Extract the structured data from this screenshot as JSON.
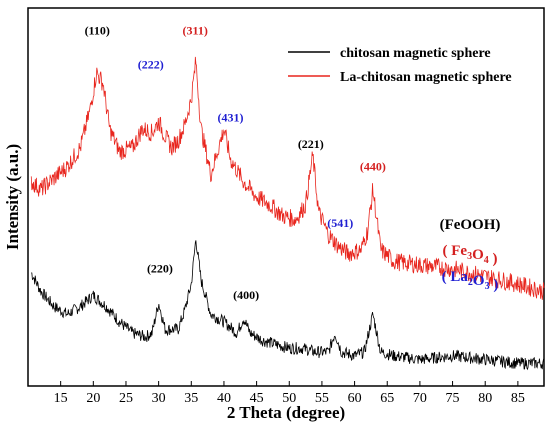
{
  "chart_data": {
    "type": "line",
    "xlabel": "2 Theta (degree)",
    "ylabel": "Intensity (a.u.)",
    "xlim": [
      10,
      89
    ],
    "xticks": [
      15,
      20,
      25,
      30,
      35,
      40,
      45,
      50,
      55,
      60,
      65,
      70,
      75,
      80,
      85
    ],
    "ylim": [
      0,
      100
    ],
    "grid": false,
    "legend_position": "top-right",
    "series": [
      {
        "name": "chitosan magnetic sphere",
        "color": "#000000",
        "points": [
          [
            10.5,
            30
          ],
          [
            12,
            25
          ],
          [
            14,
            21
          ],
          [
            16,
            19
          ],
          [
            18,
            21
          ],
          [
            20,
            24
          ],
          [
            22,
            21
          ],
          [
            24,
            17
          ],
          [
            26,
            14
          ],
          [
            28,
            13
          ],
          [
            29,
            14
          ],
          [
            30,
            22
          ],
          [
            31,
            15
          ],
          [
            33,
            15
          ],
          [
            34,
            20
          ],
          [
            35,
            27
          ],
          [
            35.7,
            39
          ],
          [
            36.5,
            28
          ],
          [
            38,
            19
          ],
          [
            40,
            17
          ],
          [
            42,
            14
          ],
          [
            43,
            18
          ],
          [
            44,
            14
          ],
          [
            46,
            12
          ],
          [
            48,
            11
          ],
          [
            50,
            10
          ],
          [
            52,
            10
          ],
          [
            54,
            9
          ],
          [
            56,
            9
          ],
          [
            57,
            14
          ],
          [
            58,
            9
          ],
          [
            60,
            8
          ],
          [
            61.5,
            9
          ],
          [
            62.8,
            19
          ],
          [
            64,
            9
          ],
          [
            66,
            8
          ],
          [
            70,
            7
          ],
          [
            75,
            8
          ],
          [
            80,
            7
          ],
          [
            85,
            6
          ],
          [
            89,
            6
          ]
        ],
        "noise": 1.6
      },
      {
        "name": "La-chitosan magnetic sphere",
        "color": "#e8251d",
        "points": [
          [
            10.5,
            54
          ],
          [
            12,
            52
          ],
          [
            14,
            55
          ],
          [
            16,
            58
          ],
          [
            18,
            63
          ],
          [
            19.5,
            73
          ],
          [
            20.5,
            83
          ],
          [
            21.5,
            80
          ],
          [
            22.5,
            68
          ],
          [
            24,
            62
          ],
          [
            26,
            63
          ],
          [
            27.5,
            68
          ],
          [
            29,
            67
          ],
          [
            30,
            70
          ],
          [
            31,
            66
          ],
          [
            32,
            63
          ],
          [
            33,
            65
          ],
          [
            34,
            69
          ],
          [
            35,
            76
          ],
          [
            35.7,
            86
          ],
          [
            36.5,
            68
          ],
          [
            38,
            56
          ],
          [
            39,
            62
          ],
          [
            40,
            68
          ],
          [
            41,
            60
          ],
          [
            43,
            54
          ],
          [
            45,
            50
          ],
          [
            47,
            48
          ],
          [
            49,
            45
          ],
          [
            51,
            44
          ],
          [
            52.5,
            48
          ],
          [
            53.6,
            61
          ],
          [
            54.5,
            46
          ],
          [
            56,
            40
          ],
          [
            57.5,
            37
          ],
          [
            59,
            35
          ],
          [
            61,
            36
          ],
          [
            62,
            41
          ],
          [
            62.8,
            52
          ],
          [
            64,
            36
          ],
          [
            66,
            33
          ],
          [
            70,
            32
          ],
          [
            75,
            31
          ],
          [
            80,
            29
          ],
          [
            85,
            27
          ],
          [
            89,
            25
          ]
        ],
        "noise": 2.4
      }
    ],
    "peak_labels": [
      {
        "text": "(110)",
        "x": 20.6,
        "y": 93,
        "color": "#000000"
      },
      {
        "text": "(222)",
        "x": 28.8,
        "y": 84,
        "color": "#1f1fd2"
      },
      {
        "text": "(311)",
        "x": 35.6,
        "y": 93,
        "color": "#d42020"
      },
      {
        "text": "(431)",
        "x": 41.0,
        "y": 70,
        "color": "#1f1fd2"
      },
      {
        "text": "(221)",
        "x": 53.3,
        "y": 63,
        "color": "#000000"
      },
      {
        "text": "(541)",
        "x": 57.8,
        "y": 42,
        "color": "#1f1fd2"
      },
      {
        "text": "(440)",
        "x": 62.8,
        "y": 57,
        "color": "#d42020"
      },
      {
        "text": "(220)",
        "x": 30.2,
        "y": 30,
        "color": "#000000"
      },
      {
        "text": "(400)",
        "x": 43.4,
        "y": 23,
        "color": "#000000"
      }
    ],
    "phase_labels": [
      {
        "pre": "(FeOOH)",
        "sub": "",
        "post": "",
        "color": "#000000"
      },
      {
        "pre": "( Fe",
        "sub": "3",
        "mid": "O",
        "sub2": "4",
        "post": " )",
        "color": "#d42020"
      },
      {
        "pre": "( La",
        "sub": "2",
        "mid": "O",
        "sub2": "3",
        "post": " )",
        "color": "#1f1fd2"
      }
    ]
  }
}
